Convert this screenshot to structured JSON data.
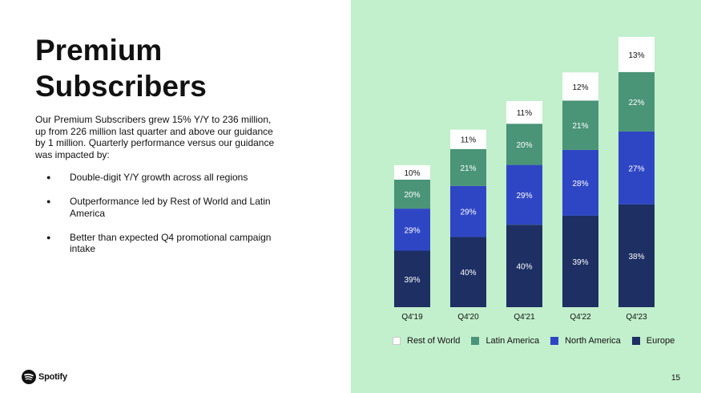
{
  "title": "Premium\nSubscribers",
  "intro": "Our Premium Subscribers grew 15% Y/Y to 236 million, up from 226 million last quarter and above our guidance by 1 million. Quarterly performance versus our guidance was impacted by:",
  "bullets": [
    "Double-digit Y/Y growth across all regions",
    "Outperformance led by Rest of World and Latin America",
    "Better than expected Q4 promotional campaign intake"
  ],
  "logo_text": "Spotify",
  "page_number": "15",
  "colors": {
    "background_right": "#c2efcc",
    "rest_of_world": "#ffffff",
    "latin_america": "#4a9478",
    "north_america": "#2f46c4",
    "europe": "#1d2f63"
  },
  "chart_data": {
    "type": "bar",
    "stacked": true,
    "categories": [
      "Q4'19",
      "Q4'20",
      "Q4'21",
      "Q4'22",
      "Q4'23"
    ],
    "totals_millions": [
      124,
      155,
      180,
      205,
      236
    ],
    "series": [
      {
        "name": "Europe",
        "color": "#1d2f63",
        "values": [
          39,
          40,
          40,
          39,
          38
        ],
        "labels": [
          "39%",
          "40%",
          "40%",
          "39%",
          "38%"
        ]
      },
      {
        "name": "North America",
        "color": "#2f46c4",
        "values": [
          29,
          29,
          29,
          28,
          27
        ],
        "labels": [
          "29%",
          "29%",
          "29%",
          "28%",
          "27%"
        ]
      },
      {
        "name": "Latin America",
        "color": "#4a9478",
        "values": [
          20,
          21,
          20,
          21,
          22
        ],
        "labels": [
          "20%",
          "21%",
          "20%",
          "21%",
          "22%"
        ]
      },
      {
        "name": "Rest of World",
        "color": "#ffffff",
        "values": [
          10,
          11,
          11,
          12,
          13
        ],
        "labels": [
          "10%",
          "11%",
          "11%",
          "12%",
          "13%"
        ]
      }
    ],
    "legend": {
      "position": "bottom",
      "order": [
        "Rest of World",
        "Latin America",
        "North America",
        "Europe"
      ]
    },
    "title": "",
    "xlabel": "",
    "ylabel": "",
    "grid": false
  }
}
